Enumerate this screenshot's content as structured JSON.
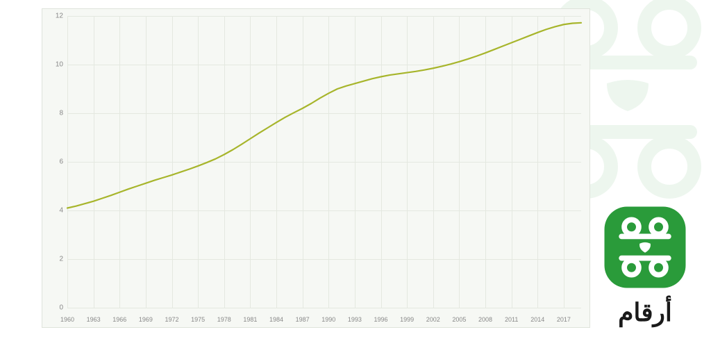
{
  "chart": {
    "type": "line",
    "background_color": "#f6f8f4",
    "border_color": "#dfe3db",
    "grid_color": "#e4e8e0",
    "line_color": "#a7b52b",
    "line_width": 2.2,
    "text_color": "#888888",
    "tick_fontsize": 10,
    "x_ticks": [
      "1960",
      "1963",
      "1966",
      "1969",
      "1972",
      "1975",
      "1978",
      "1981",
      "1984",
      "1987",
      "1990",
      "1993",
      "1996",
      "1999",
      "2002",
      "2005",
      "2008",
      "2011",
      "2014",
      "2017"
    ],
    "y_ticks": [
      0,
      2,
      4,
      6,
      8,
      10,
      12
    ],
    "xlim": [
      1960,
      2019
    ],
    "ylim": [
      0,
      12
    ],
    "x_values": [
      1960,
      1961,
      1962,
      1963,
      1964,
      1965,
      1966,
      1967,
      1968,
      1969,
      1970,
      1971,
      1972,
      1973,
      1974,
      1975,
      1976,
      1977,
      1978,
      1979,
      1980,
      1981,
      1982,
      1983,
      1984,
      1985,
      1986,
      1987,
      1988,
      1989,
      1990,
      1991,
      1992,
      1993,
      1994,
      1995,
      1996,
      1997,
      1998,
      1999,
      2000,
      2001,
      2002,
      2003,
      2004,
      2005,
      2006,
      2007,
      2008,
      2009,
      2010,
      2011,
      2012,
      2013,
      2014,
      2015,
      2016,
      2017,
      2018,
      2019
    ],
    "y_values": [
      4.1,
      4.18,
      4.28,
      4.38,
      4.5,
      4.62,
      4.75,
      4.88,
      5.0,
      5.12,
      5.24,
      5.35,
      5.46,
      5.58,
      5.7,
      5.83,
      5.97,
      6.12,
      6.3,
      6.5,
      6.72,
      6.95,
      7.18,
      7.4,
      7.62,
      7.83,
      8.02,
      8.2,
      8.4,
      8.62,
      8.82,
      9.0,
      9.12,
      9.22,
      9.32,
      9.42,
      9.5,
      9.57,
      9.62,
      9.67,
      9.72,
      9.78,
      9.85,
      9.93,
      10.02,
      10.12,
      10.23,
      10.35,
      10.48,
      10.62,
      10.76,
      10.9,
      11.04,
      11.18,
      11.32,
      11.45,
      11.56,
      11.65,
      11.7,
      11.72
    ]
  },
  "branding": {
    "logo_bg_color": "#2a9b3a",
    "logo_fg_color": "#ffffff",
    "logo_decoration_color": "#2a9b3a",
    "text": "أرقام",
    "text_color": "#1a1a1a",
    "text_fontsize": 36
  }
}
